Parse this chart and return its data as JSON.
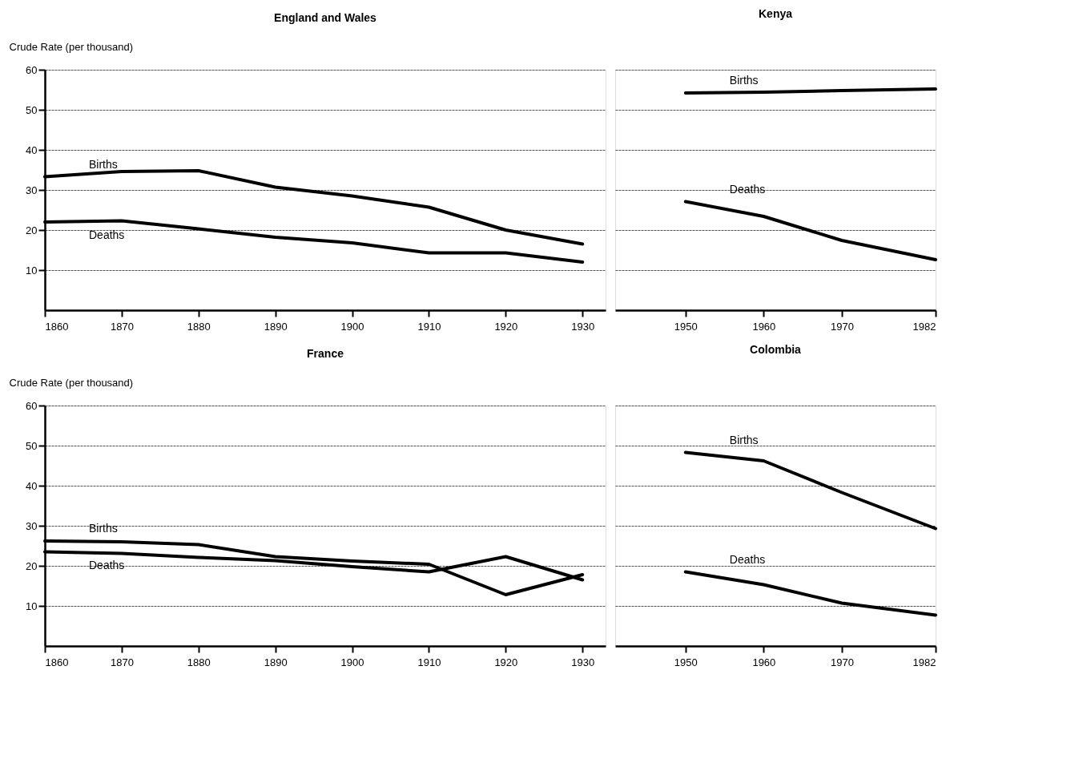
{
  "chart_data": [
    {
      "type": "line",
      "title": "England and Wales",
      "ylabel": "Crude Rate (per thousand)",
      "x": [
        1860,
        1870,
        1880,
        1890,
        1900,
        1910,
        1920,
        1930
      ],
      "xlim": [
        1860,
        1933
      ],
      "xticks": [
        1860,
        1870,
        1880,
        1890,
        1900,
        1910,
        1920,
        1930
      ],
      "ylim": [
        0,
        60
      ],
      "yticks": [
        10,
        20,
        30,
        40,
        50,
        60
      ],
      "grid": "y",
      "line_style": "solid",
      "marker": "none",
      "series": [
        {
          "name": "Births",
          "color": "#000000",
          "values": [
            33.3,
            34.6,
            34.8,
            30.7,
            28.5,
            25.7,
            20,
            16.5
          ]
        },
        {
          "name": "Deaths",
          "color": "#000000",
          "values": [
            22,
            22.3,
            20.3,
            18.2,
            16.8,
            14.3,
            14.3,
            12
          ]
        }
      ]
    },
    {
      "type": "line",
      "title": "Kenya",
      "x": [
        1950,
        1960,
        1970,
        1982
      ],
      "xlim": [
        1941,
        1982
      ],
      "xticks": [
        1950,
        1960,
        1970,
        1982
      ],
      "ylim": [
        0,
        60
      ],
      "yticks": [
        10,
        20,
        30,
        40,
        50,
        60
      ],
      "grid": "y",
      "tick_labels": "x",
      "line_style": "solid",
      "marker": "none",
      "series": [
        {
          "name": "Births",
          "color": "#000000",
          "values": [
            54.2,
            54.4,
            54.8,
            55.2
          ]
        },
        {
          "name": "Deaths",
          "color": "#000000",
          "values": [
            27.1,
            23.4,
            17.4,
            12.6
          ]
        }
      ]
    },
    {
      "type": "line",
      "title": "France",
      "ylabel": "Crude Rate (per thousand)",
      "x": [
        1860,
        1870,
        1880,
        1890,
        1900,
        1910,
        1920,
        1930
      ],
      "xlim": [
        1860,
        1933
      ],
      "xticks": [
        1860,
        1870,
        1880,
        1890,
        1900,
        1910,
        1920,
        1930
      ],
      "ylim": [
        0,
        60
      ],
      "yticks": [
        10,
        20,
        30,
        40,
        50,
        60
      ],
      "grid": "y",
      "line_style": "solid",
      "marker": "none",
      "series": [
        {
          "name": "Births",
          "color": "#000000",
          "values": [
            26.2,
            26,
            25.3,
            22.3,
            21.2,
            20.4,
            12.8,
            17.8
          ]
        },
        {
          "name": "Deaths",
          "color": "#000000",
          "values": [
            23.5,
            23.1,
            22.1,
            21.3,
            19.8,
            18.5,
            22.3,
            16.5
          ]
        }
      ]
    },
    {
      "type": "line",
      "title": "Colombia",
      "x": [
        1950,
        1960,
        1970,
        1982
      ],
      "xlim": [
        1941,
        1982
      ],
      "xticks": [
        1950,
        1960,
        1970,
        1982
      ],
      "ylim": [
        0,
        60
      ],
      "yticks": [
        10,
        20,
        30,
        40,
        50,
        60
      ],
      "grid": "y",
      "tick_labels": "x",
      "line_style": "solid",
      "marker": "none",
      "series": [
        {
          "name": "Births",
          "color": "#000000",
          "values": [
            48.3,
            46.2,
            38.3,
            29.3
          ]
        },
        {
          "name": "Deaths",
          "color": "#000000",
          "values": [
            18.5,
            15.3,
            10.7,
            7.7
          ]
        }
      ]
    }
  ]
}
